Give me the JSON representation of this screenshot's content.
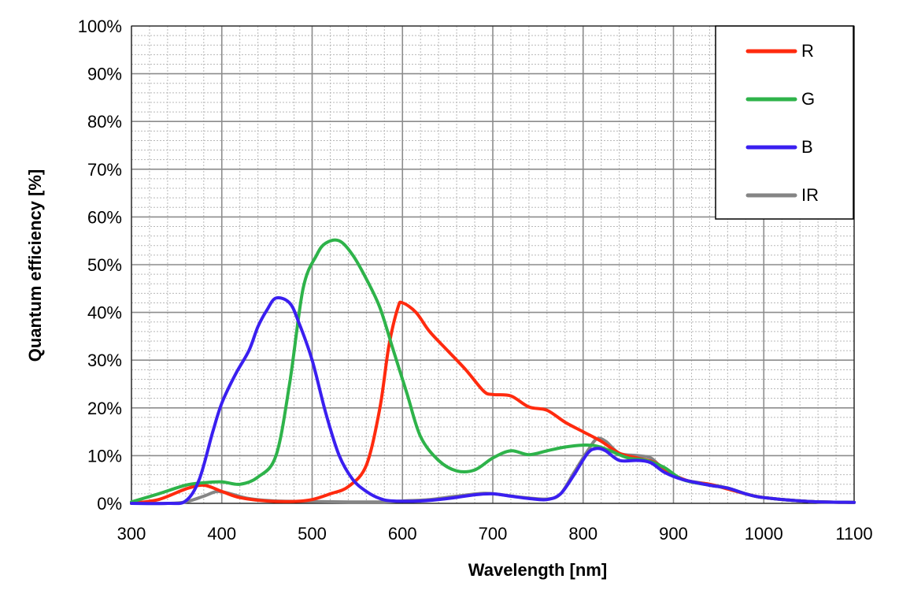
{
  "chart_data": {
    "type": "line",
    "title": "",
    "xlabel": "Wavelength [nm]",
    "ylabel": "Quantum efficiency [%]",
    "xlim": [
      300,
      1100
    ],
    "ylim": [
      0,
      100
    ],
    "x_ticks": [
      "300",
      "400",
      "500",
      "600",
      "700",
      "800",
      "900",
      "1000",
      "1100"
    ],
    "y_ticks": [
      "0%",
      "10%",
      "20%",
      "30%",
      "40%",
      "50%",
      "60%",
      "70%",
      "80%",
      "90%",
      "100%"
    ],
    "grid": "major and minor",
    "legend_position": "top-right",
    "series": [
      {
        "name": "R",
        "color": "#ff2a0e",
        "points": [
          [
            300,
            0
          ],
          [
            330,
            0.8
          ],
          [
            360,
            3
          ],
          [
            380,
            3.8
          ],
          [
            400,
            2.5
          ],
          [
            420,
            1.2
          ],
          [
            450,
            0.5
          ],
          [
            480,
            0.4
          ],
          [
            500,
            0.8
          ],
          [
            520,
            2
          ],
          [
            540,
            3.5
          ],
          [
            560,
            8
          ],
          [
            575,
            20
          ],
          [
            585,
            33
          ],
          [
            595,
            41
          ],
          [
            600,
            42
          ],
          [
            615,
            40
          ],
          [
            630,
            36
          ],
          [
            650,
            32
          ],
          [
            670,
            28
          ],
          [
            690,
            23.5
          ],
          [
            700,
            22.8
          ],
          [
            720,
            22.5
          ],
          [
            740,
            20.2
          ],
          [
            760,
            19.5
          ],
          [
            780,
            17
          ],
          [
            800,
            15
          ],
          [
            820,
            13
          ],
          [
            840,
            10.5
          ],
          [
            860,
            9.5
          ],
          [
            880,
            8.5
          ],
          [
            900,
            6
          ],
          [
            920,
            4.5
          ],
          [
            940,
            4
          ],
          [
            960,
            3
          ],
          [
            980,
            2
          ],
          [
            1000,
            1.2
          ],
          [
            1050,
            0.4
          ],
          [
            1100,
            0.2
          ]
        ]
      },
      {
        "name": "G",
        "color": "#2eb34a",
        "points": [
          [
            300,
            0.3
          ],
          [
            330,
            2
          ],
          [
            360,
            3.8
          ],
          [
            380,
            4.3
          ],
          [
            400,
            4.5
          ],
          [
            420,
            4
          ],
          [
            440,
            5.5
          ],
          [
            460,
            10
          ],
          [
            475,
            25
          ],
          [
            490,
            45
          ],
          [
            505,
            52
          ],
          [
            515,
            54.5
          ],
          [
            530,
            55
          ],
          [
            545,
            52
          ],
          [
            560,
            47
          ],
          [
            575,
            41
          ],
          [
            590,
            32
          ],
          [
            605,
            23
          ],
          [
            620,
            14
          ],
          [
            640,
            9
          ],
          [
            660,
            6.8
          ],
          [
            680,
            7
          ],
          [
            700,
            9.5
          ],
          [
            720,
            11
          ],
          [
            740,
            10.2
          ],
          [
            760,
            11
          ],
          [
            780,
            11.8
          ],
          [
            800,
            12.2
          ],
          [
            815,
            12
          ],
          [
            830,
            11
          ],
          [
            850,
            9.5
          ],
          [
            870,
            9
          ],
          [
            890,
            7.5
          ],
          [
            910,
            5
          ],
          [
            940,
            3.8
          ],
          [
            960,
            3.2
          ],
          [
            980,
            2
          ],
          [
            1000,
            1.2
          ],
          [
            1050,
            0.4
          ],
          [
            1100,
            0.2
          ]
        ]
      },
      {
        "name": "B",
        "color": "#3a1ff0",
        "points": [
          [
            300,
            0
          ],
          [
            340,
            0
          ],
          [
            360,
            0.5
          ],
          [
            375,
            5
          ],
          [
            390,
            15
          ],
          [
            400,
            21
          ],
          [
            415,
            27
          ],
          [
            430,
            32
          ],
          [
            440,
            37
          ],
          [
            450,
            40.5
          ],
          [
            460,
            43
          ],
          [
            475,
            42
          ],
          [
            485,
            38
          ],
          [
            500,
            30
          ],
          [
            515,
            19
          ],
          [
            530,
            10
          ],
          [
            545,
            5
          ],
          [
            560,
            2.5
          ],
          [
            575,
            1
          ],
          [
            590,
            0.5
          ],
          [
            620,
            0.5
          ],
          [
            650,
            1
          ],
          [
            680,
            1.8
          ],
          [
            700,
            2
          ],
          [
            720,
            1.5
          ],
          [
            740,
            1
          ],
          [
            760,
            0.8
          ],
          [
            775,
            2
          ],
          [
            790,
            6
          ],
          [
            805,
            10.5
          ],
          [
            815,
            11.5
          ],
          [
            825,
            11
          ],
          [
            840,
            9
          ],
          [
            860,
            9
          ],
          [
            875,
            8.5
          ],
          [
            890,
            6.5
          ],
          [
            910,
            5
          ],
          [
            940,
            3.8
          ],
          [
            960,
            3.2
          ],
          [
            980,
            2
          ],
          [
            1000,
            1.2
          ],
          [
            1050,
            0.4
          ],
          [
            1100,
            0.2
          ]
        ]
      },
      {
        "name": "IR",
        "color": "#858585",
        "points": [
          [
            300,
            0
          ],
          [
            340,
            0
          ],
          [
            360,
            0.3
          ],
          [
            380,
            1.5
          ],
          [
            395,
            2.5
          ],
          [
            410,
            2
          ],
          [
            430,
            1
          ],
          [
            460,
            0.5
          ],
          [
            500,
            0.4
          ],
          [
            540,
            0.3
          ],
          [
            580,
            0.3
          ],
          [
            600,
            0.5
          ],
          [
            630,
            0.8
          ],
          [
            660,
            1.5
          ],
          [
            690,
            2.1
          ],
          [
            710,
            1.8
          ],
          [
            730,
            1.3
          ],
          [
            760,
            0.9
          ],
          [
            775,
            2
          ],
          [
            790,
            6.5
          ],
          [
            805,
            11
          ],
          [
            815,
            13.5
          ],
          [
            825,
            13
          ],
          [
            840,
            10.5
          ],
          [
            860,
            10
          ],
          [
            875,
            9.5
          ],
          [
            890,
            7
          ],
          [
            910,
            5
          ],
          [
            940,
            4
          ],
          [
            960,
            3.2
          ],
          [
            980,
            2
          ],
          [
            1000,
            1.2
          ],
          [
            1050,
            0.4
          ],
          [
            1100,
            0.2
          ]
        ]
      }
    ]
  }
}
